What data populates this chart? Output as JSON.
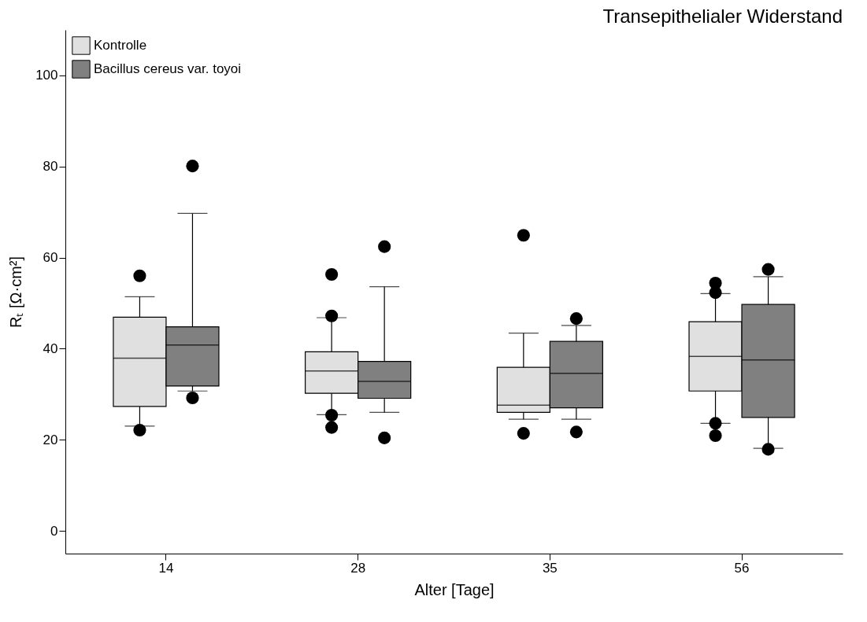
{
  "chart_data": {
    "type": "box",
    "title": "Transepithelialer Widerstand",
    "xlabel": "Alter [Tage]",
    "ylabel": "Rₜ [Ω·cm²]",
    "categories": [
      "14",
      "28",
      "35",
      "56"
    ],
    "ylim": [
      -5,
      110
    ],
    "yticks": [
      0,
      20,
      40,
      60,
      80,
      100
    ],
    "grid": false,
    "legend": "top left",
    "series": [
      {
        "name": "Kontrolle",
        "color": "#e0e0e0",
        "boxes": [
          {
            "low": 23.0,
            "q1": 27.3,
            "median": 37.9,
            "q3": 46.9,
            "high": 51.4,
            "outliers": [
              56.0,
              22.1
            ]
          },
          {
            "low": 25.5,
            "q1": 30.2,
            "median": 35.1,
            "q3": 39.3,
            "high": 46.8,
            "outliers": [
              56.3,
              47.2,
              25.4,
              22.7
            ]
          },
          {
            "low": 24.5,
            "q1": 26.0,
            "median": 27.6,
            "q3": 35.9,
            "high": 43.4,
            "outliers": [
              64.9,
              21.4
            ]
          },
          {
            "low": 23.6,
            "q1": 30.7,
            "median": 38.3,
            "q3": 45.9,
            "high": 52.1,
            "outliers": [
              54.4,
              52.3,
              23.6,
              20.9
            ]
          }
        ]
      },
      {
        "name": "Bacillus cereus var. toyoi",
        "color": "#808080",
        "boxes": [
          {
            "low": 30.7,
            "q1": 31.8,
            "median": 40.8,
            "q3": 44.8,
            "high": 69.7,
            "outliers": [
              80.1,
              29.2
            ]
          },
          {
            "low": 26.0,
            "q1": 29.1,
            "median": 32.8,
            "q3": 37.2,
            "high": 53.6,
            "outliers": [
              62.4,
              20.4
            ]
          },
          {
            "low": 24.5,
            "q1": 27.0,
            "median": 34.6,
            "q3": 41.6,
            "high": 45.1,
            "outliers": [
              46.6,
              21.7
            ]
          },
          {
            "low": 18.1,
            "q1": 24.9,
            "median": 37.5,
            "q3": 49.7,
            "high": 55.8,
            "outliers": [
              57.4,
              17.9
            ]
          }
        ]
      }
    ]
  }
}
